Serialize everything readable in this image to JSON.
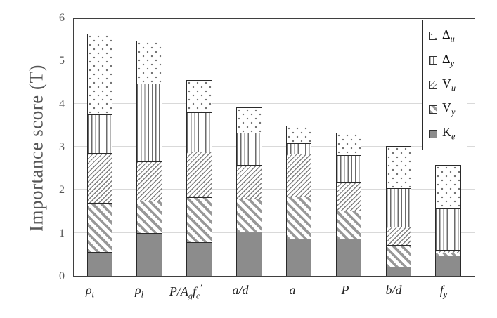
{
  "y_axis": {
    "label": "Importance score (T)",
    "ticks": [
      "0",
      "1",
      "2",
      "3",
      "4",
      "5",
      "6"
    ]
  },
  "legend": {
    "items": [
      {
        "label": "Δ_{u}",
        "pattern": "dots"
      },
      {
        "label": "Δ_{y}",
        "pattern": "vlines"
      },
      {
        "label": "V_{u}",
        "pattern": "diag-up"
      },
      {
        "label": "V_{y}",
        "pattern": "diag-down"
      },
      {
        "label": "K_{e}",
        "pattern": "solid"
      }
    ]
  },
  "chart_data": {
    "type": "bar",
    "stacked": true,
    "title": "",
    "xlabel": "",
    "ylabel": "Importance score (T)",
    "ylim": [
      0,
      6
    ],
    "yticks": [
      0,
      1,
      2,
      3,
      4,
      5,
      6
    ],
    "grid": "horizontal",
    "legend_position": "top-right-inside",
    "categories": [
      "ρ_{t}",
      "ρ_{l}",
      "P/A_{g}f_{c}^{′}",
      "a/d",
      "a",
      "P",
      "b/d",
      "f_{y}"
    ],
    "series": [
      {
        "name": "K_{e}",
        "pattern": "solid",
        "values": [
          0.55,
          1.0,
          0.78,
          1.02,
          0.86,
          0.87,
          0.22,
          0.47
        ]
      },
      {
        "name": "V_{y}",
        "pattern": "diag-down",
        "values": [
          1.15,
          0.74,
          1.05,
          0.78,
          0.99,
          0.64,
          0.49,
          0.07
        ]
      },
      {
        "name": "V_{u}",
        "pattern": "diag-up",
        "values": [
          1.15,
          0.92,
          1.05,
          0.77,
          0.99,
          0.67,
          0.43,
          0.07
        ]
      },
      {
        "name": "Δ_{y}",
        "pattern": "vlines",
        "values": [
          0.9,
          1.81,
          0.92,
          0.76,
          0.24,
          0.63,
          0.9,
          0.95
        ]
      },
      {
        "name": "Δ_{u}",
        "pattern": "dots",
        "values": [
          1.88,
          1.0,
          0.75,
          0.58,
          0.41,
          0.52,
          0.98,
          1.01
        ]
      }
    ],
    "stack_totals": [
      5.63,
      5.47,
      4.55,
      3.91,
      3.49,
      3.33,
      3.02,
      2.57
    ]
  },
  "colors": {
    "solid_fill": "#8c8c8c",
    "bar_outline": "#2a2a2a",
    "gridline": "#d9d9d9",
    "axis_text": "#565656",
    "frame": "#3f3f3f"
  }
}
